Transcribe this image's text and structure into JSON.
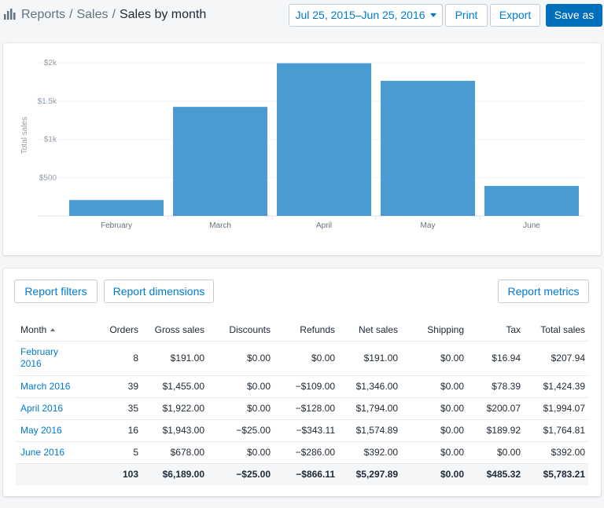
{
  "breadcrumb": {
    "icon": "bar-chart-icon",
    "items": [
      "Reports",
      "Sales"
    ],
    "separator": "/",
    "current": "Sales by month"
  },
  "toolbar": {
    "date_range": "Jul 25, 2015–Jun 25, 2016",
    "print_label": "Print",
    "export_label": "Export",
    "save_label": "Save as"
  },
  "colors": {
    "bar": "#4a9bd1",
    "primary": "#006fbb",
    "link": "#007ace"
  },
  "chart_data": {
    "type": "bar",
    "categories": [
      "February",
      "March",
      "April",
      "May",
      "June"
    ],
    "values": [
      207.94,
      1424.39,
      1994.07,
      1764.81,
      392.0
    ],
    "ylabel": "Total sales",
    "ylim": [
      0,
      2000
    ],
    "yticks": [
      500,
      1000,
      1500,
      2000
    ],
    "ytick_labels": [
      "$500",
      "$1k",
      "$1.5k",
      "$2k"
    ],
    "grid": "horizontal"
  },
  "report_buttons": {
    "filters": "Report filters",
    "dimensions": "Report dimensions",
    "metrics": "Report metrics"
  },
  "table": {
    "headers": [
      "Month",
      "Orders",
      "Gross sales",
      "Discounts",
      "Refunds",
      "Net sales",
      "Shipping",
      "Tax",
      "Total sales"
    ],
    "rows": [
      {
        "month": "February 2016",
        "orders": "8",
        "gross": "$191.00",
        "discounts": "$0.00",
        "refunds": "$0.00",
        "net": "$191.00",
        "shipping": "$0.00",
        "tax": "$16.94",
        "total": "$207.94"
      },
      {
        "month": "March 2016",
        "orders": "39",
        "gross": "$1,455.00",
        "discounts": "$0.00",
        "refunds": "−$109.00",
        "net": "$1,346.00",
        "shipping": "$0.00",
        "tax": "$78.39",
        "total": "$1,424.39"
      },
      {
        "month": "April 2016",
        "orders": "35",
        "gross": "$1,922.00",
        "discounts": "$0.00",
        "refunds": "−$128.00",
        "net": "$1,794.00",
        "shipping": "$0.00",
        "tax": "$200.07",
        "total": "$1,994.07"
      },
      {
        "month": "May 2016",
        "orders": "16",
        "gross": "$1,943.00",
        "discounts": "−$25.00",
        "refunds": "−$343.11",
        "net": "$1,574.89",
        "shipping": "$0.00",
        "tax": "$189.92",
        "total": "$1,764.81"
      },
      {
        "month": "June 2016",
        "orders": "5",
        "gross": "$678.00",
        "discounts": "$0.00",
        "refunds": "−$286.00",
        "net": "$392.00",
        "shipping": "$0.00",
        "tax": "$0.00",
        "total": "$392.00"
      }
    ],
    "totals": {
      "orders": "103",
      "gross": "$6,189.00",
      "discounts": "−$25.00",
      "refunds": "−$866.11",
      "net": "$5,297.89",
      "shipping": "$0.00",
      "tax": "$485.32",
      "total": "$5,783.21"
    }
  }
}
